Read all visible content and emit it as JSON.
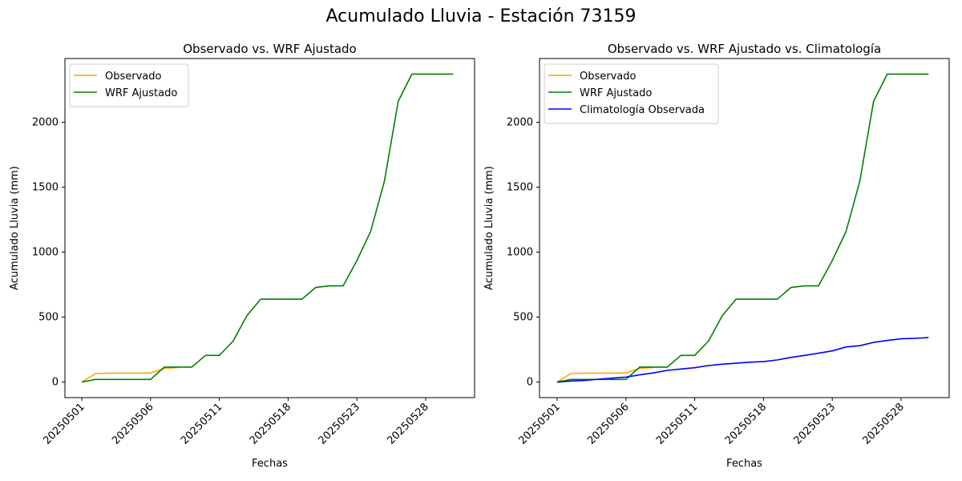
{
  "suptitle": "Acumulado Lluvia - Estación 73159",
  "chart_data": [
    {
      "type": "line",
      "title": "Observado vs. WRF Ajustado",
      "xlabel": "Fechas",
      "ylabel": "Acumulado Lluvia (mm)",
      "xticks": [
        "20250501",
        "20250506",
        "20250511",
        "20250518",
        "20250523",
        "20250528"
      ],
      "yticks": [
        0,
        500,
        1000,
        1500,
        2000
      ],
      "ylim": [
        -120,
        2490
      ],
      "grid": false,
      "legend": "upper left",
      "series": [
        {
          "name": "Observado",
          "color": "#ffa500",
          "values": [
            0,
            65,
            68,
            68,
            68,
            70,
            105,
            112
          ]
        },
        {
          "name": "WRF Ajustado",
          "color": "#008000",
          "values": [
            0,
            20,
            20,
            20,
            20,
            20,
            115,
            115,
            115,
            205,
            205,
            315,
            510,
            638,
            638,
            638,
            638,
            728,
            740,
            740,
            935,
            1160,
            1545,
            2160,
            2370,
            2370,
            2370,
            2370
          ]
        }
      ]
    },
    {
      "type": "line",
      "title": "Observado vs. WRF Ajustado vs. Climatología",
      "xlabel": "Fechas",
      "ylabel": "Acumulado Lluvia (mm)",
      "xticks": [
        "20250501",
        "20250506",
        "20250511",
        "20250518",
        "20250523",
        "20250528"
      ],
      "yticks": [
        0,
        500,
        1000,
        1500,
        2000
      ],
      "ylim": [
        -120,
        2490
      ],
      "grid": false,
      "legend": "upper left",
      "series": [
        {
          "name": "Observado",
          "color": "#ffa500",
          "values": [
            0,
            65,
            68,
            68,
            68,
            70,
            105,
            112
          ]
        },
        {
          "name": "WRF Ajustado",
          "color": "#008000",
          "values": [
            0,
            20,
            20,
            20,
            20,
            20,
            115,
            115,
            115,
            205,
            205,
            315,
            510,
            638,
            638,
            638,
            638,
            728,
            740,
            740,
            935,
            1160,
            1545,
            2160,
            2370,
            2370,
            2370,
            2370
          ]
        },
        {
          "name": "Climatología Observada",
          "color": "#0000ff",
          "values": [
            0,
            8,
            12,
            22,
            30,
            38,
            55,
            70,
            90,
            100,
            110,
            127,
            137,
            145,
            153,
            157,
            170,
            190,
            205,
            222,
            240,
            270,
            280,
            305,
            320,
            333,
            336,
            342
          ]
        }
      ]
    }
  ]
}
